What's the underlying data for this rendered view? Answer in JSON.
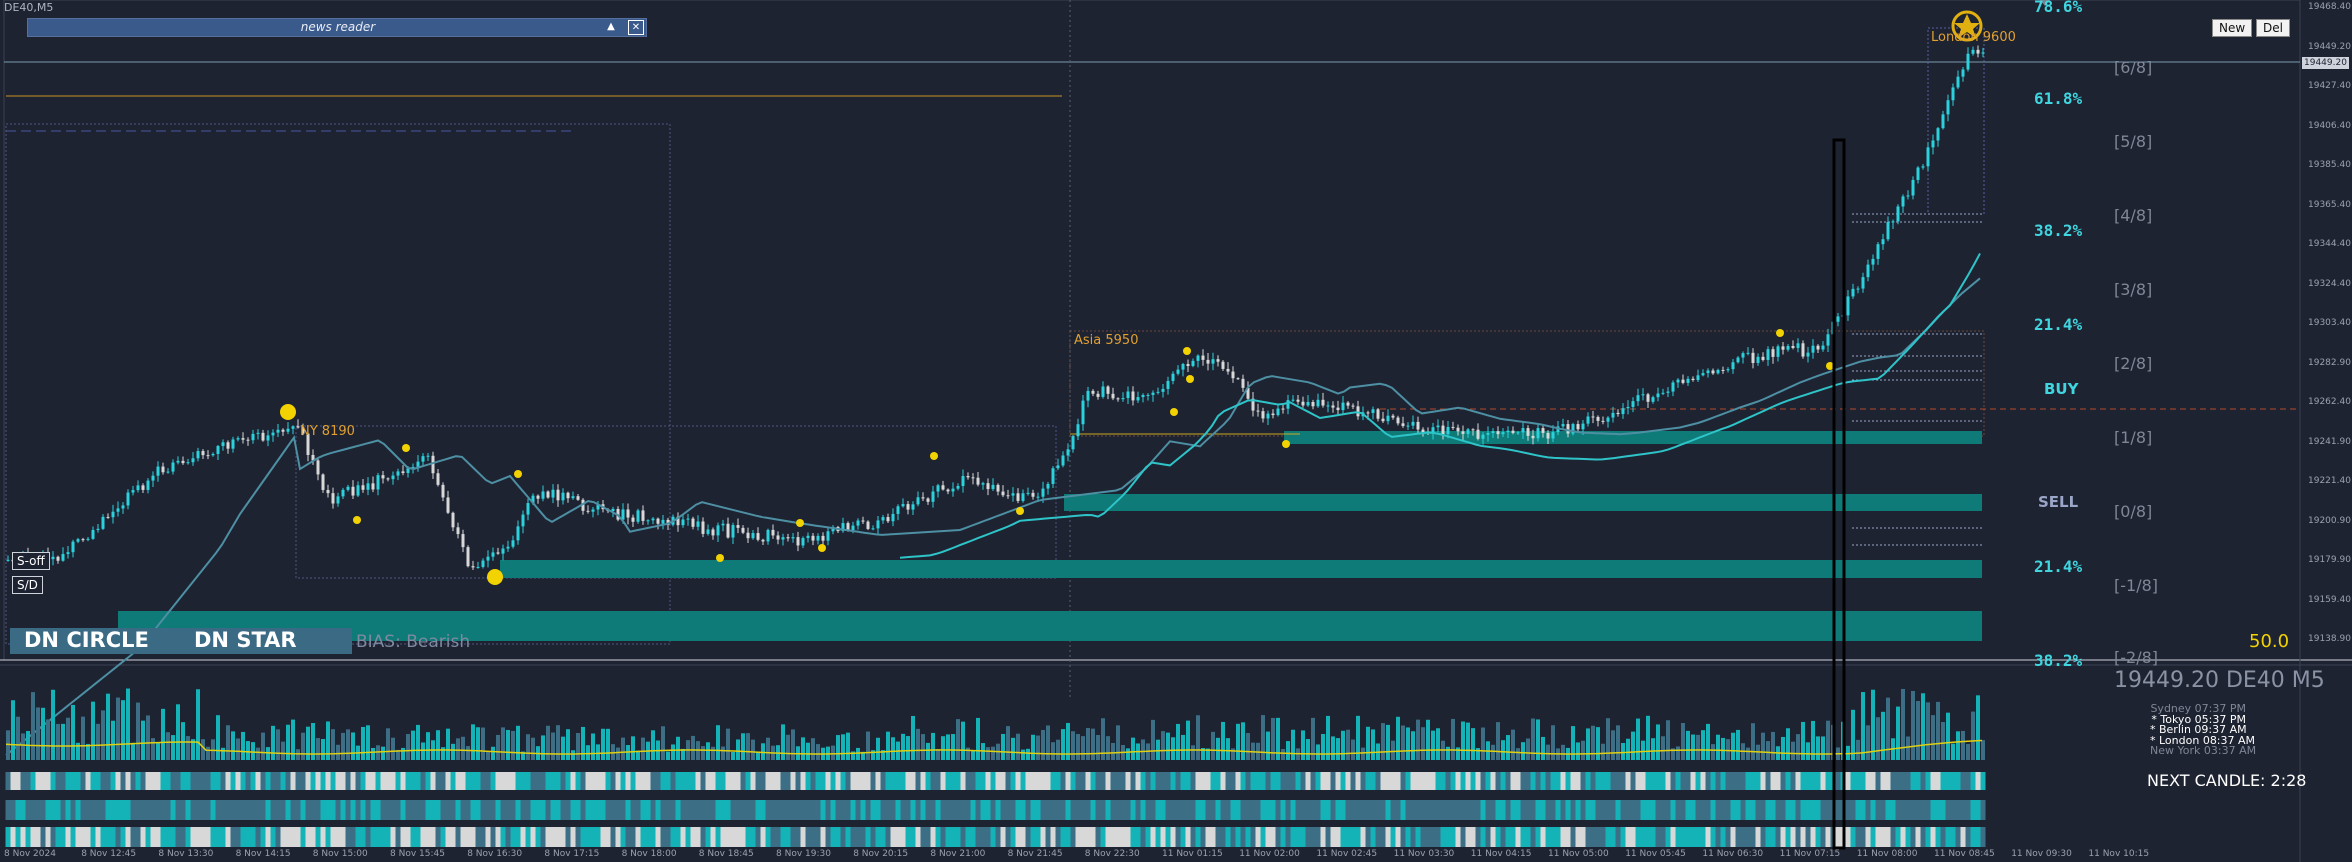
{
  "window": {
    "title": "DE40,M5"
  },
  "news_reader": {
    "label": "news reader",
    "collapse_glyph": "▲",
    "close_glyph": "✕"
  },
  "buttons": {
    "new": "New",
    "del": "Del",
    "s_off": "S-off",
    "s_d": "S/D"
  },
  "panel": {
    "dn_circle": "DN CIRCLE",
    "dn_star": "DN STAR",
    "bias": "BIAS: Bearish"
  },
  "annotations": {
    "ny": "NY 8190",
    "asia": "Asia 5950",
    "london": "London 9600",
    "buy": "BUY",
    "sell": "SELL"
  },
  "fib_levels": [
    {
      "label": "78.6%",
      "color": "#3fd6e0"
    },
    {
      "label": "61.8%",
      "color": "#3fd6e0"
    },
    {
      "label": "38.2%",
      "color": "#3fd6e0"
    },
    {
      "label": "21.4%",
      "color": "#3fd6e0"
    },
    {
      "label": "21.4%",
      "color": "#3fd6e0"
    },
    {
      "label": "38.2%",
      "color": "#3fd6e0"
    }
  ],
  "murrey": [
    "[6/8]",
    "[5/8]",
    "[4/8]",
    "[3/8]",
    "[2/8]",
    "[1/8]",
    "[0/8]",
    "[-1/8]",
    "[-2/8]"
  ],
  "price_axis": [
    "19468.40",
    "19449.20",
    "19427.40",
    "19406.40",
    "19385.40",
    "19365.40",
    "19344.40",
    "19324.40",
    "19303.40",
    "19282.90",
    "19262.40",
    "19241.90",
    "19221.40",
    "19200.90",
    "19179.90",
    "19159.40",
    "19138.90"
  ],
  "current_price": "19449.20",
  "time_axis": [
    "8 Nov 2024",
    "8 Nov 12:45",
    "8 Nov 13:30",
    "8 Nov 14:15",
    "8 Nov 15:00",
    "8 Nov 15:45",
    "8 Nov 16:30",
    "8 Nov 17:15",
    "8 Nov 18:00",
    "8 Nov 18:45",
    "8 Nov 19:30",
    "8 Nov 20:15",
    "8 Nov 21:00",
    "8 Nov 21:45",
    "8 Nov 22:30",
    "11 Nov 01:15",
    "11 Nov 02:00",
    "11 Nov 02:45",
    "11 Nov 03:30",
    "11 Nov 04:15",
    "11 Nov 05:00",
    "11 Nov 05:45",
    "11 Nov 06:30",
    "11 Nov 07:15",
    "11 Nov 08:00",
    "11 Nov 08:45",
    "11 Nov 09:30",
    "11 Nov 10:15"
  ],
  "symbol_readout": "19449.20 DE40 M5",
  "clocks": [
    {
      "text": "Sydney 07:37 PM",
      "color": "#7e8696"
    },
    {
      "text": "* Tokyo 05:37 PM",
      "color": "#ffffff"
    },
    {
      "text": "* Berlin 09:37 AM",
      "color": "#ffffff"
    },
    {
      "text": "* London 08:37 AM",
      "color": "#ffffff"
    },
    {
      "text": "New York 03:37 AM",
      "color": "#7e8696"
    }
  ],
  "next_candle": "NEXT CANDLE: 2:28",
  "fifty": "50.0",
  "colors": {
    "background": "#1e2332",
    "bull": "#2bd2dc",
    "bear": "#d8d8d8",
    "zone": "#0e7b78",
    "ma": "#2ec4c8",
    "ma_slow": "#4d8fa3",
    "marker": "#f2d200"
  }
}
